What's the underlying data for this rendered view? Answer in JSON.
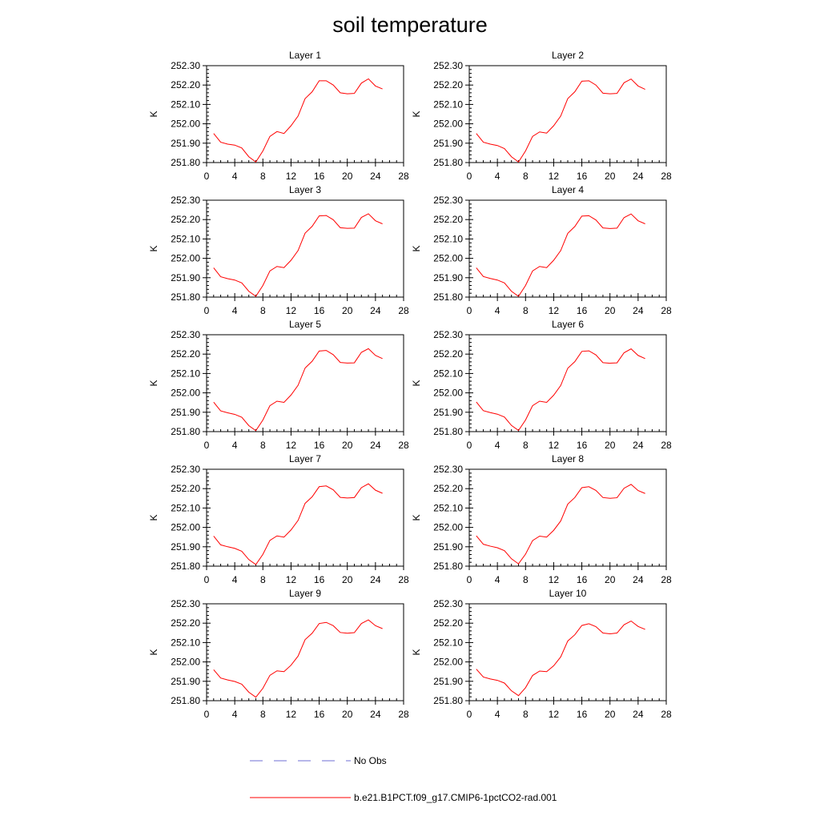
{
  "figure": {
    "title": "soil temperature"
  },
  "chart_data": {
    "type": "line",
    "title": "soil temperature",
    "panels": [
      {
        "title": "Layer 1",
        "ylabel": "K",
        "xlim": [
          0,
          28
        ],
        "ylim": [
          251.8,
          252.3
        ],
        "xticks": [
          "0",
          "4",
          "8",
          "12",
          "16",
          "20",
          "24",
          "28"
        ],
        "yticks": [
          "251.80",
          "251.90",
          "252.00",
          "252.10",
          "252.20",
          "252.30"
        ],
        "x": [
          1,
          2,
          3,
          4,
          5,
          6,
          7,
          8,
          9,
          10,
          11,
          12,
          13,
          14,
          15,
          16,
          17,
          18,
          19,
          20,
          21,
          22,
          23,
          24,
          25
        ],
        "series": [
          {
            "name": "b.e21.B1PCT.f09_g17.CMIP6-1pctCO2-rad.001",
            "values": [
              251.95,
              251.905,
              251.895,
              251.89,
              251.875,
              251.83,
              251.803,
              251.86,
              251.935,
              251.96,
              251.95,
              251.99,
              252.04,
              252.13,
              252.165,
              252.222,
              252.222,
              252.2,
              252.16,
              252.155,
              252.157,
              252.21,
              252.232,
              252.195,
              252.18
            ]
          }
        ]
      },
      {
        "title": "Layer 2",
        "ylabel": "K",
        "xlim": [
          0,
          28
        ],
        "ylim": [
          251.8,
          252.3
        ],
        "xticks": [
          "0",
          "4",
          "8",
          "12",
          "16",
          "20",
          "24",
          "28"
        ],
        "yticks": [
          "251.80",
          "251.90",
          "252.00",
          "252.10",
          "252.20",
          "252.30"
        ],
        "x": [
          1,
          2,
          3,
          4,
          5,
          6,
          7,
          8,
          9,
          10,
          11,
          12,
          13,
          14,
          15,
          16,
          17,
          18,
          19,
          20,
          21,
          22,
          23,
          24,
          25
        ],
        "series": [
          {
            "name": "b.e21.B1PCT.f09_g17.CMIP6-1pctCO2-rad.001",
            "values": [
              251.95,
              251.905,
              251.895,
              251.888,
              251.872,
              251.83,
              251.803,
              251.86,
              251.935,
              251.958,
              251.952,
              251.99,
              252.04,
              252.13,
              252.165,
              252.22,
              252.222,
              252.2,
              252.158,
              252.155,
              252.157,
              252.212,
              252.231,
              252.195,
              252.178
            ]
          }
        ]
      },
      {
        "title": "Layer 3",
        "ylabel": "K",
        "xlim": [
          0,
          28
        ],
        "ylim": [
          251.8,
          252.3
        ],
        "xticks": [
          "0",
          "4",
          "8",
          "12",
          "16",
          "20",
          "24",
          "28"
        ],
        "yticks": [
          "251.80",
          "251.90",
          "252.00",
          "252.10",
          "252.20",
          "252.30"
        ],
        "x": [
          1,
          2,
          3,
          4,
          5,
          6,
          7,
          8,
          9,
          10,
          11,
          12,
          13,
          14,
          15,
          16,
          17,
          18,
          19,
          20,
          21,
          22,
          23,
          24,
          25
        ],
        "series": [
          {
            "name": "b.e21.B1PCT.f09_g17.CMIP6-1pctCO2-rad.001",
            "values": [
              251.951,
              251.905,
              251.895,
              251.888,
              251.873,
              251.83,
              251.804,
              251.86,
              251.935,
              251.958,
              251.952,
              251.99,
              252.04,
              252.13,
              252.165,
              252.219,
              252.221,
              252.199,
              252.158,
              252.155,
              252.156,
              252.211,
              252.23,
              252.194,
              252.178
            ]
          }
        ]
      },
      {
        "title": "Layer 4",
        "ylabel": "K",
        "xlim": [
          0,
          28
        ],
        "ylim": [
          251.8,
          252.3
        ],
        "xticks": [
          "0",
          "4",
          "8",
          "12",
          "16",
          "20",
          "24",
          "28"
        ],
        "yticks": [
          "251.80",
          "251.90",
          "252.00",
          "252.10",
          "252.20",
          "252.30"
        ],
        "x": [
          1,
          2,
          3,
          4,
          5,
          6,
          7,
          8,
          9,
          10,
          11,
          12,
          13,
          14,
          15,
          16,
          17,
          18,
          19,
          20,
          21,
          22,
          23,
          24,
          25
        ],
        "series": [
          {
            "name": "b.e21.B1PCT.f09_g17.CMIP6-1pctCO2-rad.001",
            "values": [
              251.951,
              251.906,
              251.896,
              251.888,
              251.873,
              251.83,
              251.804,
              251.86,
              251.935,
              251.958,
              251.952,
              251.99,
              252.04,
              252.129,
              252.164,
              252.218,
              252.22,
              252.198,
              252.157,
              252.154,
              252.156,
              252.21,
              252.229,
              252.194,
              252.178
            ]
          }
        ]
      },
      {
        "title": "Layer 5",
        "ylabel": "K",
        "xlim": [
          0,
          28
        ],
        "ylim": [
          251.8,
          252.3
        ],
        "xticks": [
          "0",
          "4",
          "8",
          "12",
          "16",
          "20",
          "24",
          "28"
        ],
        "yticks": [
          "251.80",
          "251.90",
          "252.00",
          "252.10",
          "252.20",
          "252.30"
        ],
        "x": [
          1,
          2,
          3,
          4,
          5,
          6,
          7,
          8,
          9,
          10,
          11,
          12,
          13,
          14,
          15,
          16,
          17,
          18,
          19,
          20,
          21,
          22,
          23,
          24,
          25
        ],
        "series": [
          {
            "name": "b.e21.B1PCT.f09_g17.CMIP6-1pctCO2-rad.001",
            "values": [
              251.952,
              251.907,
              251.897,
              251.889,
              251.874,
              251.831,
              251.805,
              251.86,
              251.934,
              251.957,
              251.951,
              251.989,
              252.039,
              252.128,
              252.163,
              252.216,
              252.219,
              252.197,
              252.157,
              252.154,
              252.155,
              252.209,
              252.228,
              252.193,
              252.177
            ]
          }
        ]
      },
      {
        "title": "Layer 6",
        "ylabel": "K",
        "xlim": [
          0,
          28
        ],
        "ylim": [
          251.8,
          252.3
        ],
        "xticks": [
          "0",
          "4",
          "8",
          "12",
          "16",
          "20",
          "24",
          "28"
        ],
        "yticks": [
          "251.80",
          "251.90",
          "252.00",
          "252.10",
          "252.20",
          "252.30"
        ],
        "x": [
          1,
          2,
          3,
          4,
          5,
          6,
          7,
          8,
          9,
          10,
          11,
          12,
          13,
          14,
          15,
          16,
          17,
          18,
          19,
          20,
          21,
          22,
          23,
          24,
          25
        ],
        "series": [
          {
            "name": "b.e21.B1PCT.f09_g17.CMIP6-1pctCO2-rad.001",
            "values": [
              251.953,
              251.908,
              251.898,
              251.89,
              251.875,
              251.832,
              251.806,
              251.86,
              251.934,
              251.957,
              251.951,
              251.988,
              252.038,
              252.127,
              252.161,
              252.214,
              252.217,
              252.196,
              252.156,
              252.153,
              252.155,
              252.207,
              252.227,
              252.193,
              252.177
            ]
          }
        ]
      },
      {
        "title": "Layer 7",
        "ylabel": "K",
        "xlim": [
          0,
          28
        ],
        "ylim": [
          251.8,
          252.3
        ],
        "xticks": [
          "0",
          "4",
          "8",
          "12",
          "16",
          "20",
          "24",
          "28"
        ],
        "yticks": [
          "251.80",
          "251.90",
          "252.00",
          "252.10",
          "252.20",
          "252.30"
        ],
        "x": [
          1,
          2,
          3,
          4,
          5,
          6,
          7,
          8,
          9,
          10,
          11,
          12,
          13,
          14,
          15,
          16,
          17,
          18,
          19,
          20,
          21,
          22,
          23,
          24,
          25
        ],
        "series": [
          {
            "name": "b.e21.B1PCT.f09_g17.CMIP6-1pctCO2-rad.001",
            "values": [
              251.955,
              251.91,
              251.9,
              251.892,
              251.877,
              251.834,
              251.808,
              251.861,
              251.933,
              251.956,
              251.95,
              251.987,
              252.036,
              252.124,
              252.158,
              252.21,
              252.214,
              252.194,
              252.155,
              252.152,
              252.154,
              252.205,
              252.225,
              252.192,
              252.176
            ]
          }
        ]
      },
      {
        "title": "Layer 8",
        "ylabel": "K",
        "xlim": [
          0,
          28
        ],
        "ylim": [
          251.8,
          252.3
        ],
        "xticks": [
          "0",
          "4",
          "8",
          "12",
          "16",
          "20",
          "24",
          "28"
        ],
        "yticks": [
          "251.80",
          "251.90",
          "252.00",
          "252.10",
          "252.20",
          "252.30"
        ],
        "x": [
          1,
          2,
          3,
          4,
          5,
          6,
          7,
          8,
          9,
          10,
          11,
          12,
          13,
          14,
          15,
          16,
          17,
          18,
          19,
          20,
          21,
          22,
          23,
          24,
          25
        ],
        "series": [
          {
            "name": "b.e21.B1PCT.f09_g17.CMIP6-1pctCO2-rad.001",
            "values": [
              251.957,
              251.913,
              251.903,
              251.895,
              251.88,
              251.838,
              251.812,
              251.862,
              251.932,
              251.955,
              251.95,
              251.985,
              252.033,
              252.12,
              252.154,
              252.205,
              252.21,
              252.191,
              252.154,
              252.15,
              252.153,
              252.202,
              252.222,
              252.19,
              252.175
            ]
          }
        ]
      },
      {
        "title": "Layer 9",
        "ylabel": "K",
        "xlim": [
          0,
          28
        ],
        "ylim": [
          251.8,
          252.3
        ],
        "xticks": [
          "0",
          "4",
          "8",
          "12",
          "16",
          "20",
          "24",
          "28"
        ],
        "yticks": [
          "251.80",
          "251.90",
          "252.00",
          "252.10",
          "252.20",
          "252.30"
        ],
        "x": [
          1,
          2,
          3,
          4,
          5,
          6,
          7,
          8,
          9,
          10,
          11,
          12,
          13,
          14,
          15,
          16,
          17,
          18,
          19,
          20,
          21,
          22,
          23,
          24,
          25
        ],
        "series": [
          {
            "name": "b.e21.B1PCT.f09_g17.CMIP6-1pctCO2-rad.001",
            "values": [
              251.96,
              251.917,
              251.907,
              251.899,
              251.885,
              251.844,
              251.818,
              251.864,
              251.931,
              251.954,
              251.95,
              251.983,
              252.03,
              252.115,
              252.148,
              252.198,
              252.204,
              252.187,
              252.152,
              252.148,
              252.151,
              252.198,
              252.217,
              252.187,
              252.172
            ]
          }
        ]
      },
      {
        "title": "Layer 10",
        "ylabel": "K",
        "xlim": [
          0,
          28
        ],
        "ylim": [
          251.8,
          252.3
        ],
        "xticks": [
          "0",
          "4",
          "8",
          "12",
          "16",
          "20",
          "24",
          "28"
        ],
        "yticks": [
          "251.80",
          "251.90",
          "252.00",
          "252.10",
          "252.20",
          "252.30"
        ],
        "x": [
          1,
          2,
          3,
          4,
          5,
          6,
          7,
          8,
          9,
          10,
          11,
          12,
          13,
          14,
          15,
          16,
          17,
          18,
          19,
          20,
          21,
          22,
          23,
          24,
          25
        ],
        "series": [
          {
            "name": "b.e21.B1PCT.f09_g17.CMIP6-1pctCO2-rad.001",
            "values": [
              251.963,
              251.922,
              251.912,
              251.905,
              251.891,
              251.851,
              251.826,
              251.867,
              251.93,
              251.953,
              251.95,
              251.98,
              252.026,
              252.108,
              252.14,
              252.188,
              252.197,
              252.182,
              252.149,
              252.145,
              252.149,
              252.192,
              252.211,
              252.183,
              252.168
            ]
          }
        ]
      }
    ],
    "legend": {
      "placement": "bottom",
      "entries": [
        {
          "label": "No Obs",
          "color": "#6f6fd6",
          "style": "dashed"
        },
        {
          "label": "b.e21.B1PCT.f09_g17.CMIP6-1pctCO2-rad.001",
          "color": "#ff0000",
          "style": "solid"
        }
      ]
    }
  }
}
